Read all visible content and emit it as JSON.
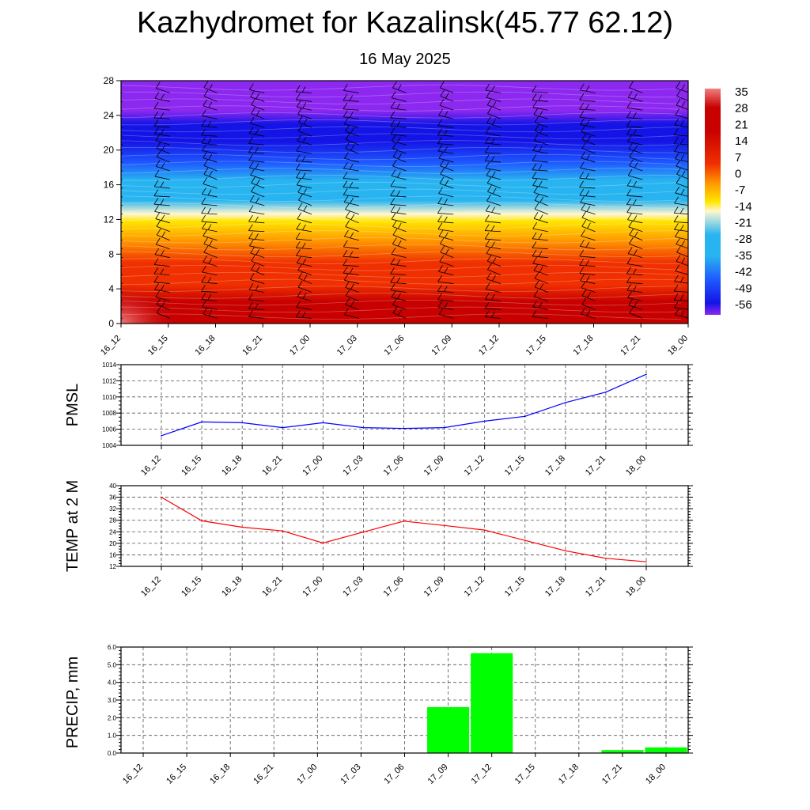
{
  "title": "Kazhydromet for Kazalinsk(45.77 62.12)",
  "subtitle": "16 May 2025",
  "time_labels": [
    "16_12",
    "16_15",
    "16_18",
    "16_21",
    "17_00",
    "17_03",
    "17_06",
    "17_09",
    "17_12",
    "17_15",
    "17_18",
    "17_21",
    "18_00"
  ],
  "chart_data": [
    {
      "type": "heatmap",
      "name": "temperature-cross-section",
      "ylim": [
        0,
        28
      ],
      "y_ticks": [
        0,
        4,
        8,
        12,
        16,
        20,
        24,
        28
      ],
      "colorbar": {
        "labels": [
          "35",
          "28",
          "21",
          "14",
          "7",
          "0",
          "-7",
          "-14",
          "-21",
          "-28",
          "-35",
          "-42",
          "-49",
          "-56"
        ],
        "range": [
          -60,
          36
        ]
      },
      "colors": {
        "warm_low": "#c80000",
        "warm_mid": "#f03000",
        "orange": "#ff9600",
        "yellow": "#ffe600",
        "light": "#fff6d0",
        "cyan": "#28b4f0",
        "blue": "#1e5aff",
        "deep_blue": "#1414e6",
        "violet": "#8c28f0",
        "hot_spot": "#f08080"
      },
      "freezing_level": 12.6
    },
    {
      "type": "line",
      "ylabel": "PMSL",
      "ylim": [
        1004,
        1014
      ],
      "y_ticks": [
        "1004",
        "1006",
        "1008",
        "1010",
        "1012",
        "1014"
      ],
      "values": [
        1005.2,
        1006.9,
        1006.8,
        1006.2,
        1006.8,
        1006.2,
        1006.1,
        1006.2,
        1007.0,
        1007.6,
        1009.3,
        1010.6,
        1012.8
      ],
      "color": "#0000ff"
    },
    {
      "type": "line",
      "ylabel": "TEMP at 2 M",
      "ylim": [
        12,
        40
      ],
      "y_ticks": [
        "12",
        "16",
        "20",
        "24",
        "28",
        "32",
        "36",
        "40"
      ],
      "values": [
        36.0,
        27.8,
        25.6,
        24.3,
        20.1,
        23.9,
        27.7,
        26.2,
        24.6,
        21.0,
        17.4,
        14.8,
        13.6
      ],
      "color": "#ff0000"
    },
    {
      "type": "bar",
      "ylabel": "PRECIP, mm",
      "ylim": [
        0,
        6
      ],
      "y_ticks": [
        "0.0",
        "1.0",
        "2.0",
        "3.0",
        "4.0",
        "5.0",
        "6.0"
      ],
      "values": [
        0,
        0,
        0,
        0,
        0,
        0,
        0,
        2.6,
        5.65,
        0,
        0,
        0.17,
        0.32
      ],
      "color": "#00ff00"
    }
  ]
}
